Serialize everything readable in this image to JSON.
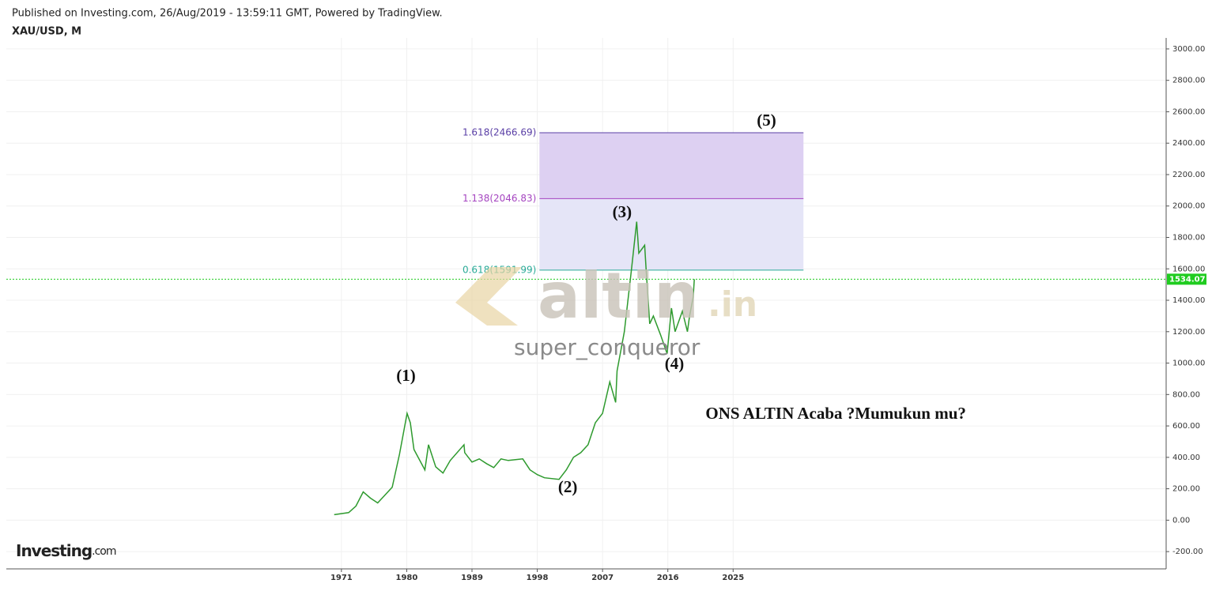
{
  "header": {
    "published": "Published on Investing.com, 26/Aug/2019 - 13:59:11 GMT, Powered by TradingView.",
    "symbol": "XAU/USD, M"
  },
  "watermark": {
    "brand": [
      "altin",
      ".in"
    ],
    "user": "super_conqueror"
  },
  "logo": [
    "Investing",
    ".com"
  ],
  "chart_data": {
    "type": "line",
    "x": [
      1970,
      1972,
      1973,
      1974,
      1975,
      1976,
      1977,
      1978,
      1979,
      1980.05,
      1980.5,
      1981,
      1982.5,
      1983,
      1984,
      1985,
      1986,
      1987.9,
      1988,
      1989,
      1990,
      1991,
      1992,
      1993,
      1994,
      1995,
      1996,
      1997,
      1998,
      1999,
      2001,
      2002,
      2003,
      2004,
      2005,
      2006,
      2007,
      2008,
      2008.8,
      2009,
      2010,
      2011,
      2011.7,
      2012,
      2012.8,
      2013,
      2013.5,
      2014,
      2015,
      2015.9,
      2016.5,
      2017,
      2018,
      2018.7,
      2019,
      2019.5,
      2019.65
    ],
    "series": [
      {
        "name": "XAU/USD",
        "color": "#2e9a2e",
        "values": [
          35,
          48,
          90,
          180,
          140,
          110,
          160,
          210,
          420,
          680,
          620,
          450,
          320,
          480,
          340,
          300,
          380,
          480,
          430,
          370,
          390,
          360,
          335,
          390,
          380,
          385,
          390,
          320,
          290,
          270,
          260,
          320,
          400,
          430,
          480,
          620,
          680,
          880,
          750,
          950,
          1200,
          1600,
          1900,
          1700,
          1750,
          1600,
          1250,
          1300,
          1180,
          1060,
          1350,
          1200,
          1330,
          1200,
          1300,
          1420,
          1534.07
        ]
      }
    ],
    "xlim": [
      1924.8,
      2084.7
    ],
    "ylim": [
      -310,
      3070
    ],
    "xticks": [
      1971,
      1980,
      1989,
      1998,
      2007,
      2016,
      2025
    ],
    "yticks": [
      {
        "value": 3000,
        "label": "3000.00"
      },
      {
        "value": 2800,
        "label": "2800.00"
      },
      {
        "value": 2600,
        "label": "2600.00"
      },
      {
        "value": 2400,
        "label": "2400.00"
      },
      {
        "value": 2200,
        "label": "2200.00"
      },
      {
        "value": 2000,
        "label": "2000.00"
      },
      {
        "value": 1800,
        "label": "1800.00"
      },
      {
        "value": 1600,
        "label": "1600.00"
      },
      {
        "value": 1400,
        "label": "1400.00"
      },
      {
        "value": 1200,
        "label": "1200.00"
      },
      {
        "value": 1000,
        "label": "1000.00"
      },
      {
        "value": 800,
        "label": "800.00"
      },
      {
        "value": 600,
        "label": "600.00"
      },
      {
        "value": 400,
        "label": "400.00"
      },
      {
        "value": 200,
        "label": "200.00"
      },
      {
        "value": 0,
        "label": "0.00"
      },
      {
        "value": -200,
        "label": "-200.00"
      }
    ],
    "grid": true,
    "last_price": {
      "value": 1534.07,
      "label": "1534.07",
      "color": "#1fcc1f"
    },
    "fib_x": [
      1998.3,
      2034.7
    ],
    "fib_levels": [
      {
        "value": 2466.69,
        "label": "1.618(2466.69)",
        "color": "#5a3fa6",
        "fill": "#ddd0f2"
      },
      {
        "value": 2046.83,
        "label": "1.138(2046.83)",
        "color": "#a545c0",
        "fill": "#e5e5f7"
      },
      {
        "value": 1591.99,
        "label": "0.618(1591.99)",
        "color": "#2aab98"
      }
    ],
    "annotations": [
      {
        "text": "(1)",
        "x": 1979.9,
        "y": 911
      },
      {
        "text": "(2)",
        "x": 2002.2,
        "y": 201
      },
      {
        "text": "(3)",
        "x": 2009.7,
        "y": 1952
      },
      {
        "text": "(4)",
        "x": 2016.9,
        "y": 986
      },
      {
        "text": "(5)",
        "x": 2029.6,
        "y": 2536
      },
      {
        "text": "ONS ALTIN Acaba ?Mumukun mu?",
        "x": 2021.2,
        "y": 669,
        "anchor": "start"
      }
    ]
  }
}
